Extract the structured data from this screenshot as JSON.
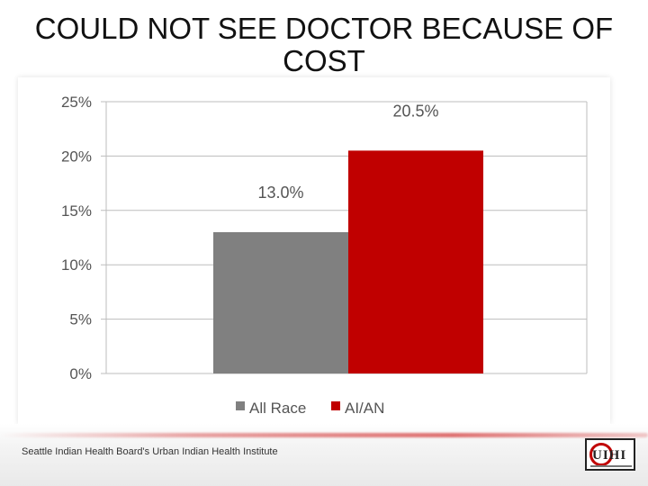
{
  "slide": {
    "title": "COULD NOT SEE DOCTOR BECAUSE OF COST",
    "footer": "Seattle Indian Health Board's Urban Indian Health Institute"
  },
  "colors": {
    "all_race": "#808080",
    "aian": "#c00000",
    "grid": "#bdbdbd",
    "text": "#555555"
  },
  "chart_data": {
    "type": "bar",
    "categories": [
      "All Race",
      "AI/AN"
    ],
    "values": [
      13.0,
      20.5
    ],
    "data_labels": [
      "13.0%",
      "20.5%"
    ],
    "ylim": [
      0,
      25
    ],
    "yticks": [
      0,
      5,
      10,
      15,
      20,
      25
    ],
    "ytick_labels": [
      "0%",
      "5%",
      "10%",
      "15%",
      "20%",
      "25%"
    ],
    "grid": true,
    "legend": {
      "placement": "bottom",
      "entries": [
        "All Race",
        "AI/AN"
      ]
    }
  }
}
